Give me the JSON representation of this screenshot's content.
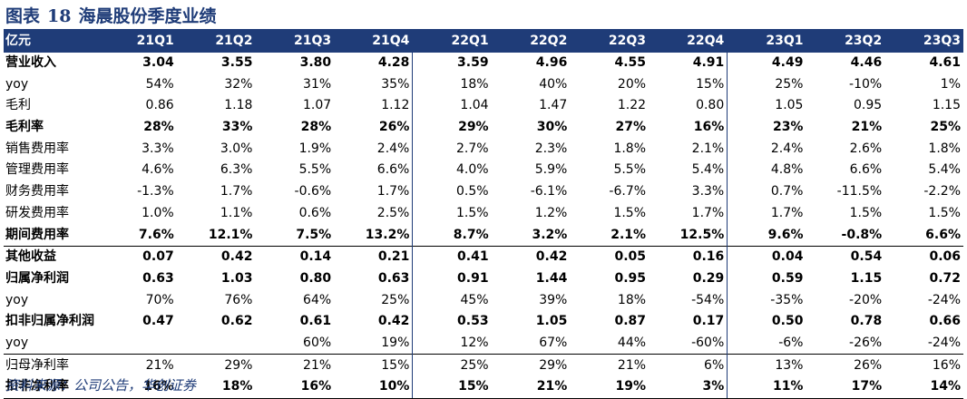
{
  "title": {
    "prefix": "图表",
    "number": "18",
    "text": "海晨股份季度业绩"
  },
  "table": {
    "header": [
      "亿元",
      "21Q1",
      "21Q2",
      "21Q3",
      "21Q4",
      "22Q1",
      "22Q2",
      "22Q3",
      "22Q4",
      "23Q1",
      "23Q2",
      "23Q3"
    ],
    "rows": [
      {
        "cells": [
          "营业收入",
          "3.04",
          "3.55",
          "3.80",
          "4.28",
          "3.59",
          "4.96",
          "4.55",
          "4.91",
          "4.49",
          "4.46",
          "4.61"
        ],
        "bold": true,
        "top": false
      },
      {
        "cells": [
          "yoy",
          "54%",
          "32%",
          "31%",
          "35%",
          "18%",
          "40%",
          "20%",
          "15%",
          "25%",
          "-10%",
          "1%"
        ],
        "bold": false,
        "top": false
      },
      {
        "cells": [
          "毛利",
          "0.86",
          "1.18",
          "1.07",
          "1.12",
          "1.04",
          "1.47",
          "1.22",
          "0.80",
          "1.05",
          "0.95",
          "1.15"
        ],
        "bold": false,
        "top": false
      },
      {
        "cells": [
          "毛利率",
          "28%",
          "33%",
          "28%",
          "26%",
          "29%",
          "30%",
          "27%",
          "16%",
          "23%",
          "21%",
          "25%"
        ],
        "bold": true,
        "top": false
      },
      {
        "cells": [
          "销售费用率",
          "3.3%",
          "3.0%",
          "1.9%",
          "2.4%",
          "2.7%",
          "2.3%",
          "1.8%",
          "2.1%",
          "2.4%",
          "2.6%",
          "1.8%"
        ],
        "bold": false,
        "top": false
      },
      {
        "cells": [
          "管理费用率",
          "4.6%",
          "6.3%",
          "5.5%",
          "6.6%",
          "4.0%",
          "5.9%",
          "5.5%",
          "5.4%",
          "4.8%",
          "6.6%",
          "5.4%"
        ],
        "bold": false,
        "top": false
      },
      {
        "cells": [
          "财务费用率",
          "-1.3%",
          "1.7%",
          "-0.6%",
          "1.7%",
          "0.5%",
          "-6.1%",
          "-6.7%",
          "3.3%",
          "0.7%",
          "-11.5%",
          "-2.2%"
        ],
        "bold": false,
        "top": false
      },
      {
        "cells": [
          "研发费用率",
          "1.0%",
          "1.1%",
          "0.6%",
          "2.5%",
          "1.5%",
          "1.2%",
          "1.5%",
          "1.7%",
          "1.7%",
          "1.5%",
          "1.5%"
        ],
        "bold": false,
        "top": false
      },
      {
        "cells": [
          "期间费用率",
          "7.6%",
          "12.1%",
          "7.5%",
          "13.2%",
          "8.7%",
          "3.2%",
          "2.1%",
          "12.5%",
          "9.6%",
          "-0.8%",
          "6.6%"
        ],
        "bold": true,
        "top": false
      },
      {
        "cells": [
          "其他收益",
          "0.07",
          "0.42",
          "0.14",
          "0.21",
          "0.41",
          "0.42",
          "0.05",
          "0.16",
          "0.04",
          "0.54",
          "0.06"
        ],
        "bold": true,
        "top": true
      },
      {
        "cells": [
          "归属净利润",
          "0.63",
          "1.03",
          "0.80",
          "0.63",
          "0.91",
          "1.44",
          "0.95",
          "0.29",
          "0.59",
          "1.15",
          "0.72"
        ],
        "bold": true,
        "top": false
      },
      {
        "cells": [
          "yoy",
          "70%",
          "76%",
          "64%",
          "25%",
          "45%",
          "39%",
          "18%",
          "-54%",
          "-35%",
          "-20%",
          "-24%"
        ],
        "bold": false,
        "top": false
      },
      {
        "cells": [
          "扣非归属净利润",
          "0.47",
          "0.62",
          "0.61",
          "0.42",
          "0.53",
          "1.05",
          "0.87",
          "0.17",
          "0.50",
          "0.78",
          "0.66"
        ],
        "bold": true,
        "top": false
      },
      {
        "cells": [
          "yoy",
          "",
          "",
          "60%",
          "19%",
          "12%",
          "67%",
          "44%",
          "-60%",
          "-6%",
          "-26%",
          "-24%"
        ],
        "bold": false,
        "top": false
      },
      {
        "cells": [
          "归母净利率",
          "21%",
          "29%",
          "21%",
          "15%",
          "25%",
          "29%",
          "21%",
          "6%",
          "13%",
          "26%",
          "16%"
        ],
        "bold": false,
        "top": true
      },
      {
        "cells": [
          "扣非净利率",
          "16%",
          "18%",
          "16%",
          "10%",
          "15%",
          "21%",
          "19%",
          "3%",
          "11%",
          "17%",
          "14%"
        ],
        "bold": true,
        "top": false
      }
    ]
  },
  "source": "资料来源：公司公告，华创证券",
  "colors": {
    "accent": "#1f3c78",
    "header_text": "#ffffff"
  }
}
